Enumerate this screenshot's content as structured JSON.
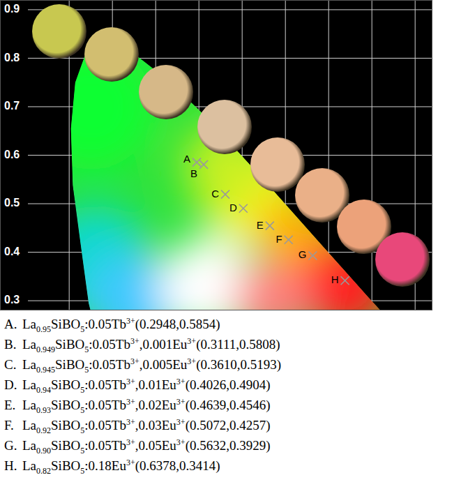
{
  "chart_data": {
    "type": "scatter",
    "x": [
      0.2948,
      0.3111,
      0.361,
      0.4026,
      0.4639,
      0.5072,
      0.5632,
      0.6378
    ],
    "values": [
      0.5854,
      0.5808,
      0.5193,
      0.4904,
      0.4546,
      0.4257,
      0.3929,
      0.3414
    ],
    "point_labels": [
      "A",
      "B",
      "C",
      "D",
      "E",
      "F",
      "G",
      "H"
    ],
    "marker": "x",
    "color": "#9a9a9a",
    "xlim": [
      -0.16,
      0.84
    ],
    "ylim": [
      0.28,
      0.92
    ],
    "xticks": [
      0,
      0.1,
      0.2,
      0.3,
      0.4,
      0.5,
      0.6,
      0.7,
      0.8
    ],
    "yticks": [
      0.3,
      0.4,
      0.5,
      0.6,
      0.7,
      0.8,
      0.9
    ],
    "grid": true,
    "tick_labels": "y",
    "captions": [
      {
        "letter": "A.",
        "text": "La0.95SiBO5:0.05Tb3+(0.2948,0.5854)"
      },
      {
        "letter": "B.",
        "text": "La0.949SiBO5:0.05Tb3+,0.001Eu3+(0.3111,0.5808)"
      },
      {
        "letter": "C.",
        "text": "La0.945SiBO5:0.05Tb3+,0.005Eu3+(0.3610,0.5193)"
      },
      {
        "letter": "D.",
        "text": "La0.94SiBO5:0.05Tb3+,0.01Eu3+(0.4026,0.4904)"
      },
      {
        "letter": "E.",
        "text": "La0.93SiBO5:0.05Tb3+,0.02Eu3+(0.4639,0.4546)"
      },
      {
        "letter": "F.",
        "text": "La0.92SiBO5:0.05Tb3+,0.03Eu3+(0.5072,0.4257)"
      },
      {
        "letter": "G.",
        "text": "La0.90SiBO5:0.05Tb3+,0.05Eu3+(0.5632,0.3929)"
      },
      {
        "letter": "H.",
        "text": "La0.82SiBO5:0.18Eu3+(0.6378,0.3414)"
      }
    ]
  }
}
